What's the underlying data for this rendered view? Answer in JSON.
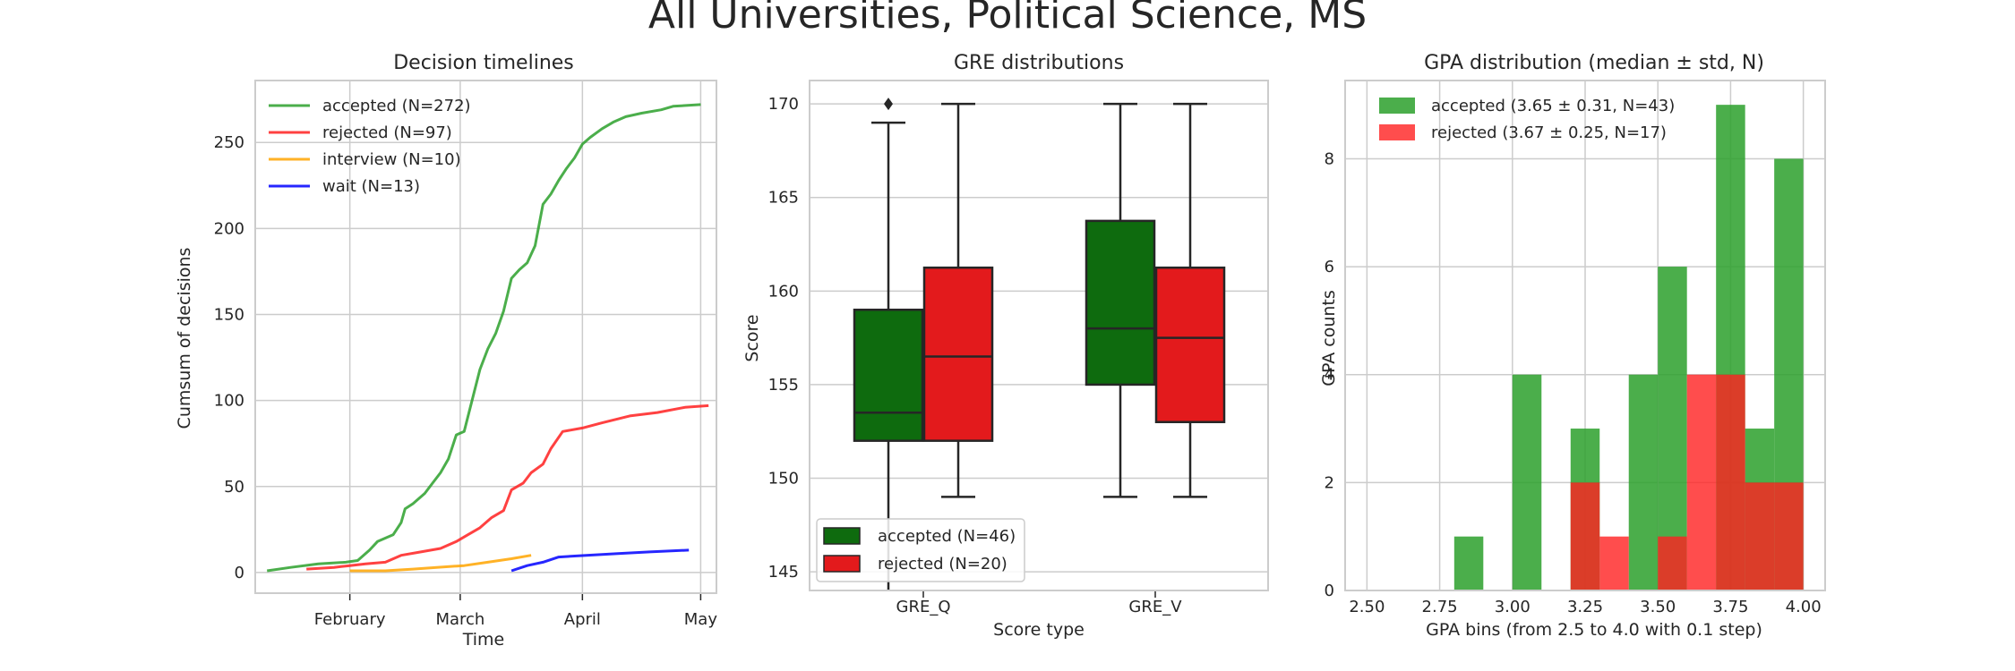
{
  "suptitle": "All Universities, Political Science, MS",
  "chart_data": [
    {
      "type": "line",
      "title": "Decision timelines",
      "xlabel": "Time",
      "ylabel": "Cumsum of decisions",
      "x_ticks": [
        "February",
        "March",
        "April",
        "May"
      ],
      "y_ticks": [
        0,
        50,
        100,
        150,
        200,
        250
      ],
      "ylim": [
        -12,
        286
      ],
      "xlim": [
        "2019-01-08",
        "2019-05-05"
      ],
      "grid": true,
      "legend_position": "top-left",
      "series": [
        {
          "name": "accepted (N=272)",
          "color": "#2ca02c",
          "points": [
            [
              "2019-01-11",
              1
            ],
            [
              "2019-01-17",
              3
            ],
            [
              "2019-01-24",
              5
            ],
            [
              "2019-01-31",
              6
            ],
            [
              "2019-02-03",
              7
            ],
            [
              "2019-02-06",
              13
            ],
            [
              "2019-02-08",
              18
            ],
            [
              "2019-02-12",
              22
            ],
            [
              "2019-02-14",
              29
            ],
            [
              "2019-02-15",
              37
            ],
            [
              "2019-02-17",
              40
            ],
            [
              "2019-02-20",
              46
            ],
            [
              "2019-02-22",
              52
            ],
            [
              "2019-02-24",
              58
            ],
            [
              "2019-02-26",
              66
            ],
            [
              "2019-02-28",
              80
            ],
            [
              "2019-03-02",
              82
            ],
            [
              "2019-03-04",
              100
            ],
            [
              "2019-03-06",
              118
            ],
            [
              "2019-03-08",
              130
            ],
            [
              "2019-03-10",
              139
            ],
            [
              "2019-03-12",
              152
            ],
            [
              "2019-03-14",
              171
            ],
            [
              "2019-03-16",
              176
            ],
            [
              "2019-03-18",
              180
            ],
            [
              "2019-03-20",
              190
            ],
            [
              "2019-03-22",
              214
            ],
            [
              "2019-03-24",
              220
            ],
            [
              "2019-03-26",
              228
            ],
            [
              "2019-03-28",
              235
            ],
            [
              "2019-03-30",
              241
            ],
            [
              "2019-04-01",
              249
            ],
            [
              "2019-04-03",
              253
            ],
            [
              "2019-04-06",
              258
            ],
            [
              "2019-04-09",
              262
            ],
            [
              "2019-04-12",
              265
            ],
            [
              "2019-04-16",
              267
            ],
            [
              "2019-04-21",
              269
            ],
            [
              "2019-04-24",
              271
            ],
            [
              "2019-05-01",
              272
            ]
          ]
        },
        {
          "name": "rejected (N=97)",
          "color": "#ff2020",
          "points": [
            [
              "2019-01-21",
              2
            ],
            [
              "2019-01-28",
              3
            ],
            [
              "2019-02-01",
              4
            ],
            [
              "2019-02-05",
              5
            ],
            [
              "2019-02-10",
              6
            ],
            [
              "2019-02-14",
              10
            ],
            [
              "2019-02-19",
              12
            ],
            [
              "2019-02-24",
              14
            ],
            [
              "2019-02-28",
              18
            ],
            [
              "2019-03-03",
              22
            ],
            [
              "2019-03-06",
              26
            ],
            [
              "2019-03-09",
              32
            ],
            [
              "2019-03-12",
              36
            ],
            [
              "2019-03-14",
              48
            ],
            [
              "2019-03-17",
              52
            ],
            [
              "2019-03-19",
              58
            ],
            [
              "2019-03-22",
              63
            ],
            [
              "2019-03-24",
              72
            ],
            [
              "2019-03-27",
              82
            ],
            [
              "2019-04-01",
              84
            ],
            [
              "2019-04-06",
              87
            ],
            [
              "2019-04-13",
              91
            ],
            [
              "2019-04-20",
              93
            ],
            [
              "2019-04-27",
              96
            ],
            [
              "2019-05-03",
              97
            ]
          ]
        },
        {
          "name": "interview (N=10)",
          "color": "#ffa500",
          "points": [
            [
              "2019-02-01",
              1
            ],
            [
              "2019-02-10",
              1
            ],
            [
              "2019-02-17",
              2
            ],
            [
              "2019-02-23",
              3
            ],
            [
              "2019-03-02",
              4
            ],
            [
              "2019-03-08",
              6
            ],
            [
              "2019-03-14",
              8
            ],
            [
              "2019-03-19",
              10
            ]
          ]
        },
        {
          "name": "wait (N=13)",
          "color": "#0000ff",
          "points": [
            [
              "2019-03-14",
              1
            ],
            [
              "2019-03-18",
              4
            ],
            [
              "2019-03-22",
              6
            ],
            [
              "2019-03-26",
              9
            ],
            [
              "2019-04-02",
              10
            ],
            [
              "2019-04-10",
              11
            ],
            [
              "2019-04-18",
              12
            ],
            [
              "2019-04-28",
              13
            ]
          ]
        }
      ]
    },
    {
      "type": "box",
      "title": "GRE distributions",
      "xlabel": "Score type",
      "ylabel": "Score",
      "categories": [
        "GRE_Q",
        "GRE_V"
      ],
      "y_ticks": [
        145,
        150,
        155,
        160,
        165,
        170
      ],
      "ylim": [
        144,
        171.25
      ],
      "grid": true,
      "legend_position": "bottom-left",
      "series": [
        {
          "name": "accepted (N=46)",
          "color": "#0e6b0e",
          "boxes": [
            {
              "whisker_low": 143,
              "q1": 152,
              "median": 153.5,
              "q3": 159,
              "whisker_high": 169,
              "fliers": [
                170
              ]
            },
            {
              "whisker_low": 149,
              "q1": 155,
              "median": 158,
              "q3": 163.75,
              "whisker_high": 170,
              "fliers": []
            }
          ]
        },
        {
          "name": "rejected (N=20)",
          "color": "#e31a1c",
          "boxes": [
            {
              "whisker_low": 149,
              "q1": 152,
              "median": 156.5,
              "q3": 161.25,
              "whisker_high": 170,
              "fliers": []
            },
            {
              "whisker_low": 149,
              "q1": 153,
              "median": 157.5,
              "q3": 161.25,
              "whisker_high": 170,
              "fliers": []
            }
          ]
        }
      ]
    },
    {
      "type": "histogram",
      "title": "GPA distribution (median ± std, N)",
      "xlabel": "GPA bins (from 2.5 to 4.0 with 0.1 step)",
      "ylabel": "GPA counts",
      "x_ticks": [
        "2.50",
        "2.75",
        "3.00",
        "3.25",
        "3.50",
        "3.75",
        "4.00"
      ],
      "y_ticks": [
        0,
        2,
        4,
        6,
        8
      ],
      "xlim": [
        2.425,
        4.075
      ],
      "ylim": [
        0,
        9.45
      ],
      "grid": true,
      "legend_position": "top-left",
      "bins": [
        2.8,
        2.9,
        3.0,
        3.1,
        3.2,
        3.3,
        3.4,
        3.5,
        3.6,
        3.7,
        3.8,
        3.9,
        4.0
      ],
      "series": [
        {
          "name": "accepted (3.65 ± 0.31, N=43)",
          "color": "#2ca02c",
          "opacity": 0.85,
          "counts": [
            1,
            0,
            4,
            0,
            3,
            0,
            4,
            6,
            0,
            9,
            3,
            8
          ]
        },
        {
          "name": "rejected (3.67 ± 0.25, N=17)",
          "color": "#ff2020",
          "opacity": 0.8,
          "counts": [
            0,
            0,
            0,
            0,
            2,
            1,
            0,
            1,
            4,
            4,
            2,
            2
          ]
        }
      ]
    }
  ]
}
